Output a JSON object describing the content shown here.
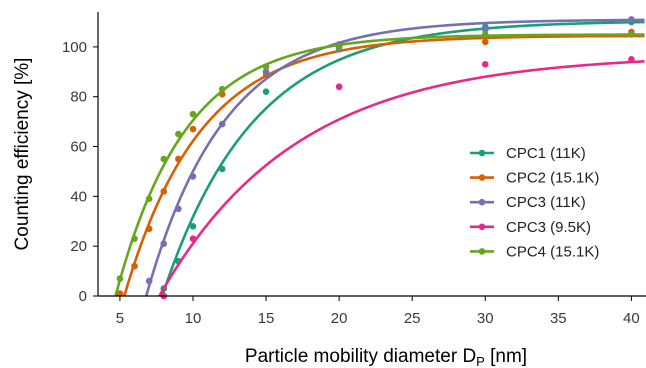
{
  "chart_data": {
    "type": "scatter",
    "xlabel": "Particle mobility diameter D",
    "xlabel_sub": "P",
    "xlabel_unit": " [nm]",
    "ylabel": "Counting efficiency [%]",
    "xlim": [
      3.5,
      41
    ],
    "ylim": [
      0,
      114
    ],
    "xticks": [
      5,
      10,
      15,
      20,
      25,
      30,
      35,
      40
    ],
    "yticks": [
      0,
      20,
      40,
      60,
      80,
      100
    ],
    "grid": false,
    "legend_position": "right",
    "series": [
      {
        "name": "CPC1 (11K)",
        "color": "#1b9e77",
        "points": [
          [
            8,
            3
          ],
          [
            9,
            14
          ],
          [
            10,
            28
          ],
          [
            12,
            51
          ],
          [
            15,
            82
          ],
          [
            20,
            101
          ],
          [
            30,
            108
          ],
          [
            40,
            110
          ]
        ],
        "fit": {
          "eta_max": 110.5,
          "d0": 7.9,
          "d50": 12.2
        }
      },
      {
        "name": "CPC2 (15.1K)",
        "color": "#d95f02",
        "points": [
          [
            5,
            1
          ],
          [
            6,
            12
          ],
          [
            7,
            27
          ],
          [
            8,
            42
          ],
          [
            9,
            55
          ],
          [
            10,
            67
          ],
          [
            12,
            81
          ],
          [
            15,
            89
          ],
          [
            20,
            100
          ],
          [
            30,
            102
          ],
          [
            40,
            106
          ]
        ],
        "fit": {
          "eta_max": 104.5,
          "d0": 5.3,
          "d50": 8.9
        }
      },
      {
        "name": "CPC3 (11K)",
        "color": "#7570b3",
        "points": [
          [
            7,
            6
          ],
          [
            8,
            21
          ],
          [
            9,
            35
          ],
          [
            10,
            48
          ],
          [
            12,
            69
          ],
          [
            15,
            90
          ],
          [
            20,
            99
          ],
          [
            30,
            107
          ],
          [
            40,
            111
          ]
        ],
        "fit": {
          "eta_max": 111,
          "d0": 6.8,
          "d50": 10.5
        }
      },
      {
        "name": "CPC3 (9.5K)",
        "color": "#e7298a",
        "points": [
          [
            8,
            0
          ],
          [
            10,
            23
          ],
          [
            20,
            84
          ],
          [
            30,
            93
          ],
          [
            40,
            95
          ]
        ],
        "fit": {
          "eta_max": 97,
          "d0": 7.7,
          "d50": 14.2
        }
      },
      {
        "name": "CPC4 (15.1K)",
        "color": "#66a61e",
        "points": [
          [
            5,
            7
          ],
          [
            6,
            23
          ],
          [
            7,
            39
          ],
          [
            8,
            55
          ],
          [
            9,
            65
          ],
          [
            10,
            73
          ],
          [
            12,
            83
          ],
          [
            15,
            92
          ],
          [
            20,
            100
          ],
          [
            30,
            105
          ],
          [
            40,
            105
          ]
        ],
        "fit": {
          "eta_max": 105,
          "d0": 4.7,
          "d50": 8.0
        }
      }
    ]
  }
}
